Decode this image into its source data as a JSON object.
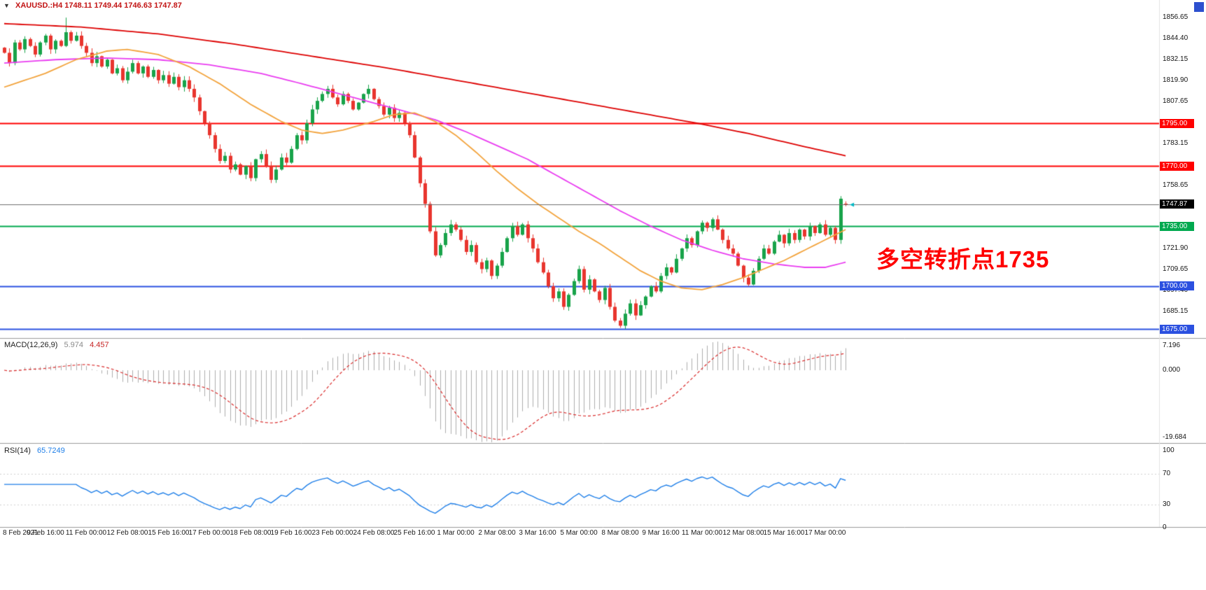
{
  "header": {
    "collapse_icon": "▼",
    "symbol_period": "XAUUSD.:H4",
    "ohlc": "1748.11 1749.44 1746.63 1747.87",
    "title_color": "#c21414"
  },
  "annotation": {
    "text": "多空转折点1735",
    "color": "#ff0000"
  },
  "panels": {
    "macd": {
      "label": "MACD(12,26,9)",
      "value_main": "5.974",
      "value_signal": "4.457",
      "axis": [
        {
          "value": 7.196,
          "text": "7.196"
        },
        {
          "value": 0,
          "text": "0.000"
        },
        {
          "value": -19.684,
          "text": "-19.684"
        }
      ]
    },
    "rsi": {
      "label": "RSI(14)",
      "value": "65.7249",
      "axis": [
        {
          "value": 100,
          "text": "100"
        },
        {
          "value": 70,
          "text": "70"
        },
        {
          "value": 30,
          "text": "30"
        },
        {
          "value": 0,
          "text": "0"
        }
      ],
      "levels": [
        70,
        30
      ]
    }
  },
  "chart_data": {
    "type": "candlestick",
    "symbol": "XAUUSD",
    "timeframe": "H4",
    "title": "XAUUSD.:H4 1748.11 1749.44 1746.63 1747.87",
    "price_range": [
      1670.5,
      1863.5
    ],
    "last_close": 1747.87,
    "last_bar_ohlc": {
      "open": 1748.11,
      "high": 1749.44,
      "low": 1746.63,
      "close": 1747.87
    },
    "colors": {
      "up": "#18a34a",
      "down": "#e8352e",
      "macd_hist": "#adadad",
      "macd_signal": "#d92b2b",
      "rsi_line": "#1f7fe8",
      "price_line": "#6f6f6f",
      "price_marker": "#00b7c3"
    },
    "closes": [
      1836,
      1830,
      1842,
      1838,
      1844,
      1840,
      1835,
      1842,
      1846,
      1838,
      1843,
      1840,
      1848,
      1843,
      1846,
      1840,
      1836,
      1830,
      1834,
      1828,
      1832,
      1824,
      1827,
      1820,
      1825,
      1830,
      1824,
      1828,
      1822,
      1826,
      1820,
      1823,
      1818,
      1822,
      1816,
      1820,
      1815,
      1810,
      1802,
      1795,
      1788,
      1780,
      1773,
      1776,
      1768,
      1771,
      1765,
      1770,
      1763,
      1774,
      1777,
      1770,
      1762,
      1768,
      1775,
      1772,
      1780,
      1788,
      1785,
      1795,
      1803,
      1808,
      1812,
      1815,
      1810,
      1806,
      1812,
      1808,
      1803,
      1807,
      1812,
      1815,
      1809,
      1805,
      1800,
      1804,
      1798,
      1801,
      1795,
      1788,
      1775,
      1760,
      1748,
      1732,
      1718,
      1724,
      1731,
      1736,
      1733,
      1727,
      1720,
      1724,
      1714,
      1710,
      1715,
      1706,
      1712,
      1720,
      1728,
      1735,
      1730,
      1736,
      1728,
      1722,
      1714,
      1708,
      1700,
      1693,
      1697,
      1688,
      1695,
      1703,
      1710,
      1698,
      1704,
      1697,
      1692,
      1699,
      1688,
      1680,
      1677,
      1684,
      1690,
      1683,
      1689,
      1694,
      1700,
      1697,
      1706,
      1711,
      1708,
      1716,
      1722,
      1728,
      1724,
      1732,
      1737,
      1734,
      1739,
      1733,
      1727,
      1722,
      1719,
      1712,
      1705,
      1701,
      1709,
      1716,
      1722,
      1719,
      1726,
      1730,
      1725,
      1731,
      1727,
      1733,
      1729,
      1735,
      1731,
      1736,
      1730,
      1734,
      1727,
      1751,
      1747.87
    ],
    "open_overrides": {
      "164": 1748.11
    },
    "high_overrides": {
      "12": 1856.5,
      "163": 1752.5,
      "164": 1749.44
    },
    "low_overrides": {
      "120": 1675.8,
      "164": 1746.63
    },
    "levels": [
      {
        "price": 1795.0,
        "label": "1795.00",
        "color": "#ff0000",
        "badge": "#ff0000",
        "width": 2
      },
      {
        "price": 1770.0,
        "label": "1770.00",
        "color": "#ff0000",
        "badge": "#ff0000",
        "width": 2
      },
      {
        "price": 1747.87,
        "label": "1747.87",
        "color": "#6f6f6f",
        "badge": "#000000",
        "width": 1
      },
      {
        "price": 1735.0,
        "label": "1735.00",
        "color": "#00a94f",
        "badge": "#00a94f",
        "width": 2
      },
      {
        "price": 1700.0,
        "label": "1700.00",
        "color": "#2b50e0",
        "badge": "#2b50e0",
        "width": 2
      },
      {
        "price": 1675.0,
        "label": "1675.00",
        "color": "#2b50e0",
        "badge": "#2b50e0",
        "width": 2
      }
    ],
    "price_axis_labels": [
      "1856.65",
      "1844.40",
      "1832.15",
      "1819.90",
      "1807.65",
      "1783.15",
      "1758.65",
      "1721.90",
      "1709.65",
      "1697.40",
      "1685.15",
      "1672.90"
    ],
    "time_labels": [
      "8 Feb 2021",
      "9 Feb 16:00",
      "11 Feb 00:00",
      "12 Feb 08:00",
      "15 Feb 16:00",
      "17 Feb 00:00",
      "18 Feb 08:00",
      "19 Feb 16:00",
      "23 Feb 00:00",
      "24 Feb 08:00",
      "25 Feb 16:00",
      "1 Mar 00:00",
      "2 Mar 08:00",
      "3 Mar 16:00",
      "5 Mar 00:00",
      "8 Mar 08:00",
      "9 Mar 16:00",
      "11 Mar 00:00",
      "12 Mar 08:00",
      "15 Mar 16:00",
      "17 Mar 00:00"
    ],
    "moving_averages": [
      {
        "name": "ma-slow-red",
        "color": "#dd0000",
        "anchors": [
          [
            0,
            1853
          ],
          [
            15,
            1851
          ],
          [
            30,
            1847
          ],
          [
            45,
            1841
          ],
          [
            60,
            1834
          ],
          [
            75,
            1827
          ],
          [
            90,
            1819
          ],
          [
            105,
            1811
          ],
          [
            120,
            1803
          ],
          [
            135,
            1795
          ],
          [
            145,
            1789
          ],
          [
            155,
            1782
          ],
          [
            164,
            1776
          ]
        ]
      },
      {
        "name": "ma-mid-magenta",
        "color": "#e93cf0",
        "anchors": [
          [
            0,
            1830
          ],
          [
            10,
            1832
          ],
          [
            20,
            1833
          ],
          [
            30,
            1832
          ],
          [
            40,
            1829
          ],
          [
            50,
            1824
          ],
          [
            58,
            1818
          ],
          [
            68,
            1810
          ],
          [
            78,
            1802
          ],
          [
            84,
            1797
          ],
          [
            90,
            1790
          ],
          [
            96,
            1782
          ],
          [
            102,
            1774
          ],
          [
            108,
            1764
          ],
          [
            114,
            1754
          ],
          [
            120,
            1744
          ],
          [
            126,
            1735
          ],
          [
            132,
            1727
          ],
          [
            138,
            1721
          ],
          [
            144,
            1716
          ],
          [
            150,
            1713
          ],
          [
            156,
            1711
          ],
          [
            160,
            1711
          ],
          [
            164,
            1714
          ]
        ]
      },
      {
        "name": "ma-fast-orange",
        "color": "#f2a33c",
        "anchors": [
          [
            0,
            1816
          ],
          [
            8,
            1824
          ],
          [
            14,
            1832
          ],
          [
            20,
            1837
          ],
          [
            24,
            1838
          ],
          [
            30,
            1835
          ],
          [
            36,
            1828
          ],
          [
            42,
            1818
          ],
          [
            48,
            1806
          ],
          [
            54,
            1796
          ],
          [
            58,
            1791
          ],
          [
            62,
            1789
          ],
          [
            66,
            1791
          ],
          [
            72,
            1796
          ],
          [
            76,
            1800
          ],
          [
            80,
            1801
          ],
          [
            84,
            1796
          ],
          [
            88,
            1788
          ],
          [
            92,
            1778
          ],
          [
            96,
            1767
          ],
          [
            100,
            1757
          ],
          [
            104,
            1748
          ],
          [
            108,
            1740
          ],
          [
            112,
            1732
          ],
          [
            116,
            1725
          ],
          [
            120,
            1717
          ],
          [
            124,
            1709
          ],
          [
            128,
            1703
          ],
          [
            132,
            1699
          ],
          [
            136,
            1698
          ],
          [
            140,
            1701
          ],
          [
            144,
            1705
          ],
          [
            148,
            1710
          ],
          [
            152,
            1715
          ],
          [
            156,
            1721
          ],
          [
            160,
            1727
          ],
          [
            164,
            1733
          ]
        ]
      }
    ],
    "macd_params": {
      "fast": 12,
      "slow": 26,
      "signal": 9,
      "current": 5.974,
      "current_signal": 4.457
    },
    "rsi_params": {
      "period": 14,
      "current": 65.7249
    }
  }
}
